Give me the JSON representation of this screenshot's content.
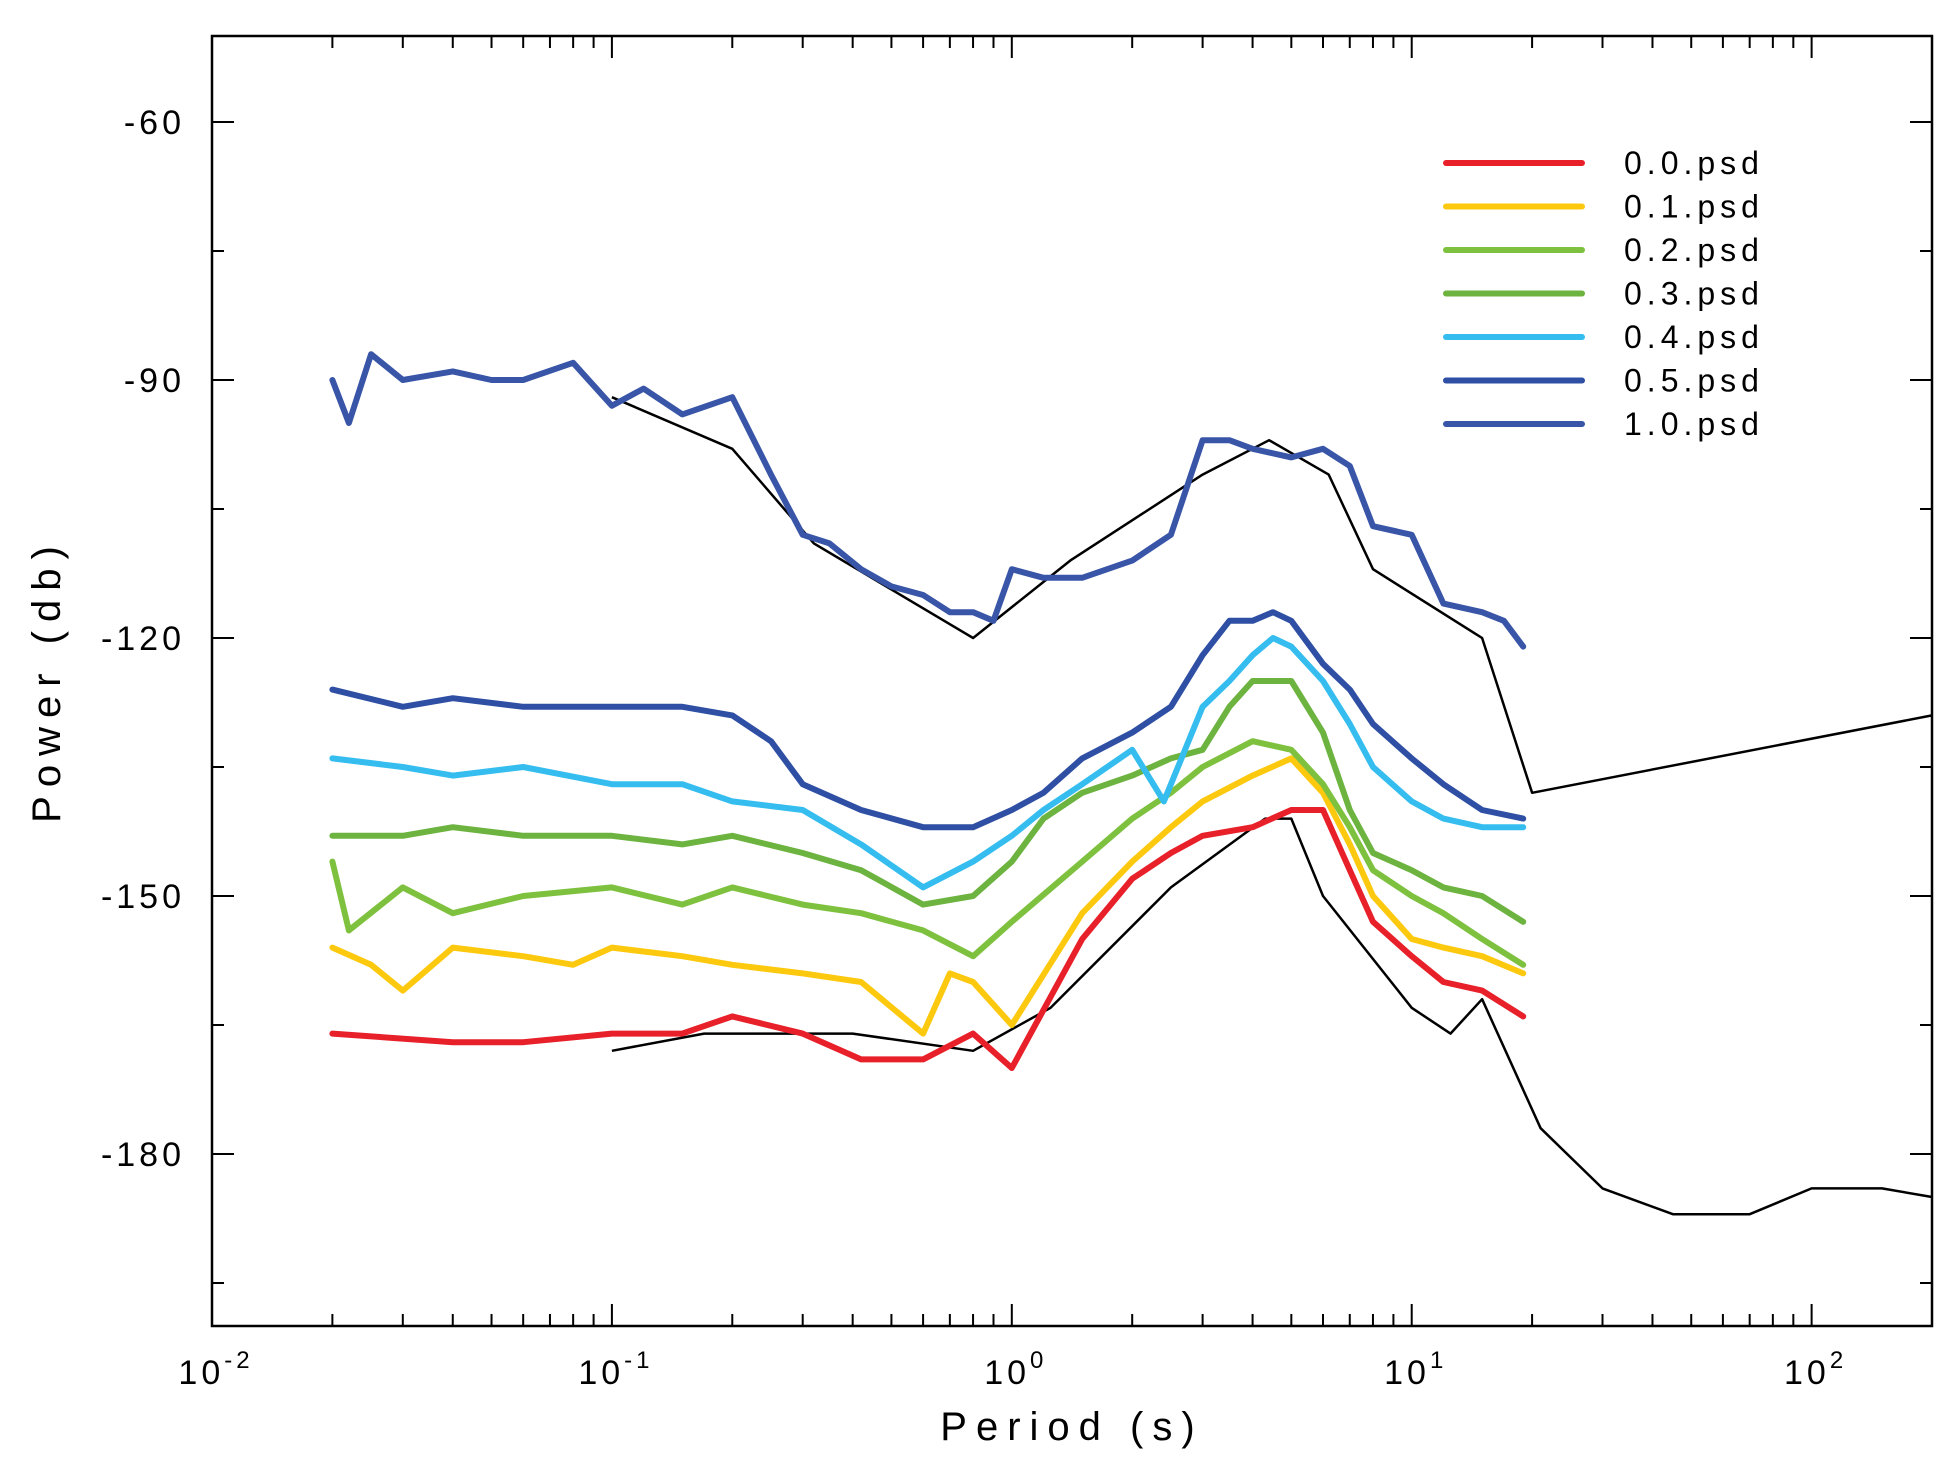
{
  "chart_data": {
    "type": "line",
    "title": "",
    "xlabel": "Period (s)",
    "ylabel": "Power (db)",
    "x_scale": "log",
    "xlim": [
      0.01,
      200
    ],
    "ylim": [
      -200,
      -50
    ],
    "x_tick_labels": [
      {
        "value": 0.01,
        "base": "10",
        "exp": "-2"
      },
      {
        "value": 0.1,
        "base": "10",
        "exp": "-1"
      },
      {
        "value": 1,
        "base": "10",
        "exp": "0"
      },
      {
        "value": 10,
        "base": "10",
        "exp": "1"
      },
      {
        "value": 100,
        "base": "10",
        "exp": "2"
      }
    ],
    "y_ticks": [
      -60,
      -90,
      -120,
      -150,
      -180
    ],
    "y_tick_labels": [
      "-60",
      "-90",
      "-120",
      "-150",
      "-180"
    ],
    "legend_position": "top-right",
    "grid": false,
    "series": [
      {
        "name": "0.0.psd",
        "color": "#e8202a",
        "x": [
          0.02,
          0.04,
          0.06,
          0.1,
          0.15,
          0.2,
          0.3,
          0.42,
          0.6,
          0.8,
          1.0,
          1.5,
          2.0,
          2.5,
          3.0,
          4.0,
          5.0,
          6.0,
          7.0,
          8.0,
          10.0,
          12.0,
          15.0,
          19.0
        ],
        "y": [
          -166,
          -167,
          -167,
          -166,
          -166,
          -164,
          -166,
          -169,
          -169,
          -166,
          -170,
          -155,
          -148,
          -145,
          -143,
          -142,
          -140,
          -140,
          -147,
          -153,
          -157,
          -160,
          -161,
          -164
        ]
      },
      {
        "name": "0.1.psd",
        "color": "#fcc90f",
        "x": [
          0.02,
          0.025,
          0.03,
          0.04,
          0.06,
          0.08,
          0.1,
          0.15,
          0.2,
          0.3,
          0.42,
          0.6,
          0.7,
          0.8,
          1.0,
          1.5,
          2.0,
          2.5,
          3.0,
          4.0,
          5.0,
          6.0,
          7.0,
          8.0,
          10.0,
          12.0,
          15.0,
          19.0
        ],
        "y": [
          -156,
          -158,
          -161,
          -156,
          -157,
          -158,
          -156,
          -157,
          -158,
          -159,
          -160,
          -166,
          -159,
          -160,
          -165,
          -152,
          -146,
          -142,
          -139,
          -136,
          -134,
          -138,
          -144,
          -150,
          -155,
          -156,
          -157,
          -159
        ]
      },
      {
        "name": "0.2.psd",
        "color": "#7ec13f",
        "x": [
          0.02,
          0.022,
          0.03,
          0.04,
          0.06,
          0.1,
          0.15,
          0.2,
          0.3,
          0.42,
          0.6,
          0.8,
          1.0,
          1.5,
          2.0,
          2.5,
          3.0,
          4.0,
          5.0,
          6.0,
          7.0,
          8.0,
          10.0,
          12.0,
          15.0,
          19.0
        ],
        "y": [
          -146,
          -154,
          -149,
          -152,
          -150,
          -149,
          -151,
          -149,
          -151,
          -152,
          -154,
          -157,
          -153,
          -146,
          -141,
          -138,
          -135,
          -132,
          -133,
          -137,
          -142,
          -147,
          -150,
          -152,
          -155,
          -158
        ]
      },
      {
        "name": "0.3.psd",
        "color": "#6cb33f",
        "x": [
          0.02,
          0.03,
          0.04,
          0.06,
          0.1,
          0.15,
          0.2,
          0.3,
          0.42,
          0.6,
          0.8,
          1.0,
          1.2,
          1.5,
          2.0,
          2.5,
          3.0,
          3.5,
          4.0,
          5.0,
          6.0,
          7.0,
          8.0,
          10.0,
          12.0,
          15.0,
          19.0
        ],
        "y": [
          -143,
          -143,
          -142,
          -143,
          -143,
          -144,
          -143,
          -145,
          -147,
          -151,
          -150,
          -146,
          -141,
          -138,
          -136,
          -134,
          -133,
          -128,
          -125,
          -125,
          -131,
          -140,
          -145,
          -147,
          -149,
          -150,
          -153
        ]
      },
      {
        "name": "0.4.psd",
        "color": "#35bdf0",
        "x": [
          0.02,
          0.03,
          0.04,
          0.06,
          0.1,
          0.15,
          0.2,
          0.3,
          0.42,
          0.6,
          0.8,
          1.0,
          1.2,
          1.5,
          2.0,
          2.4,
          3.0,
          3.5,
          4.0,
          4.5,
          5.0,
          6.0,
          7.0,
          8.0,
          10.0,
          12.0,
          15.0,
          19.0
        ],
        "y": [
          -134,
          -135,
          -136,
          -135,
          -137,
          -137,
          -139,
          -140,
          -144,
          -149,
          -146,
          -143,
          -140,
          -137,
          -133,
          -139,
          -128,
          -125,
          -122,
          -120,
          -121,
          -125,
          -130,
          -135,
          -139,
          -141,
          -142,
          -142
        ]
      },
      {
        "name": "0.5.psd",
        "color": "#2e4fa3",
        "x": [
          0.02,
          0.03,
          0.04,
          0.06,
          0.1,
          0.15,
          0.2,
          0.25,
          0.3,
          0.42,
          0.6,
          0.8,
          1.0,
          1.2,
          1.5,
          2.0,
          2.5,
          3.0,
          3.5,
          4.0,
          4.5,
          5.0,
          6.0,
          7.0,
          8.0,
          10.0,
          12.0,
          15.0,
          19.0
        ],
        "y": [
          -126,
          -128,
          -127,
          -128,
          -128,
          -128,
          -129,
          -132,
          -137,
          -140,
          -142,
          -142,
          -140,
          -138,
          -134,
          -131,
          -128,
          -122,
          -118,
          -118,
          -117,
          -118,
          -123,
          -126,
          -130,
          -134,
          -137,
          -140,
          -141
        ]
      },
      {
        "name": "1.0.psd",
        "color": "#3955a8",
        "x": [
          0.02,
          0.022,
          0.025,
          0.03,
          0.04,
          0.05,
          0.06,
          0.08,
          0.1,
          0.12,
          0.15,
          0.2,
          0.25,
          0.3,
          0.35,
          0.42,
          0.5,
          0.6,
          0.7,
          0.8,
          0.9,
          1.0,
          1.2,
          1.5,
          2.0,
          2.5,
          3.0,
          3.5,
          4.0,
          5.0,
          6.0,
          7.0,
          8.0,
          10.0,
          12.0,
          15.0,
          17.0,
          19.0
        ],
        "y": [
          -90,
          -95,
          -87,
          -90,
          -89,
          -90,
          -90,
          -88,
          -93,
          -91,
          -94,
          -92,
          -101,
          -108,
          -109,
          -112,
          -114,
          -115,
          -117,
          -117,
          -118,
          -112,
          -113,
          -113,
          -111,
          -108,
          -97,
          -97,
          -98,
          -99,
          -98,
          -100,
          -107,
          -108,
          -116,
          -117,
          -118,
          -121
        ]
      }
    ],
    "reference_lines": [
      {
        "name": "",
        "color": "#000000",
        "x": [
          0.1,
          0.2,
          0.32,
          0.8,
          1.4,
          3.0,
          4.4,
          6.2,
          8.0,
          15.0,
          20.0,
          200.0
        ],
        "y": [
          -92,
          -98,
          -109,
          -120,
          -111,
          -101,
          -97,
          -101,
          -112,
          -120,
          -138,
          -129
        ]
      },
      {
        "name": "",
        "color": "#000000",
        "x": [
          0.1,
          0.17,
          0.4,
          0.8,
          1.25,
          2.5,
          4.3,
          5.0,
          6.0,
          10.0,
          12.5,
          15.0,
          21.0,
          30.0,
          45.0,
          70.0,
          100.0,
          150.0,
          200.0
        ],
        "y": [
          -168,
          -166,
          -166,
          -168,
          -163,
          -149,
          -141,
          -141,
          -150,
          -163,
          -166,
          -162,
          -177,
          -184,
          -187,
          -187,
          -184,
          -184,
          -185
        ]
      }
    ]
  }
}
